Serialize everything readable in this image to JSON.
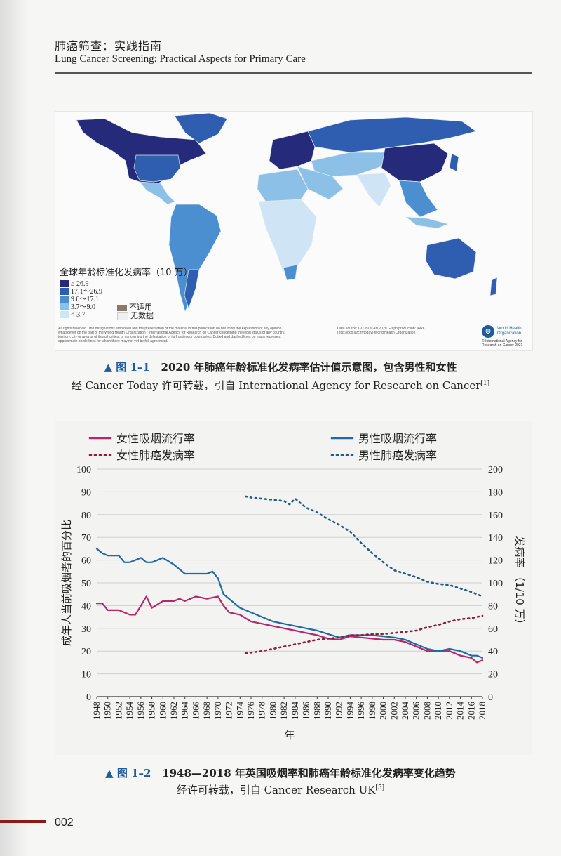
{
  "header": {
    "title_cn": "肺癌筛查：实践指南",
    "title_en": "Lung Cancer Screening: Practical Aspects for Primary Care"
  },
  "figure1": {
    "legend_title": "全球年龄标准化发病率（10 万）",
    "legend": [
      {
        "label": "≥ 26.9",
        "color": "#252a7a"
      },
      {
        "label": "17.1～26.9",
        "color": "#2f5db0"
      },
      {
        "label": "9.0～17.1",
        "color": "#4b8fd0"
      },
      {
        "label": "3.7～9.0",
        "color": "#8cc0e6"
      },
      {
        "label": "< 3.7",
        "color": "#cfe4f4"
      }
    ],
    "na_legend": [
      {
        "label": "不适用",
        "color": "#8a7a6a"
      },
      {
        "label": "无数据",
        "color": "#efefef"
      }
    ],
    "disclaimer": "All rights reserved. The designations employed and the presentation of the material in this publication do not imply the expression of any opinion whatsoever on the part of the World Health Organization / International Agency for Research on Cancer concerning the legal status of any country, territory, city or area or of its authorities, or concerning the delimitation of its frontiers or boundaries. Dotted and dashed lines on maps represent approximate borderlines for which there may not yet be full agreement.",
    "data_source": "Data source: GLOBOCAN 2020 Graph production: IARC (http://gco.iarc.fr/today) World Health Organization",
    "who_name": "World Health Organization",
    "who_copy": "© International Agency for Research on Cancer 2021",
    "caption_fig": "▲ 图 1–1",
    "caption_title": "2020 年肺癌年龄标准化发病率估计值示意图，包含男性和女性",
    "caption_source": "经 Cancer Today 许可转载，引自 International Agency for Research on Cancer",
    "caption_ref": "[1]"
  },
  "figure2": {
    "caption_fig": "▲ 图 1–2",
    "caption_title": "1948—2018 年英国吸烟率和肺癌年龄标准化发病率变化趋势",
    "caption_source": "经许可转载，引自 Cancer Research UK",
    "caption_ref": "[5]"
  },
  "chart_data": {
    "type": "line",
    "xlabel": "年",
    "ylabel_left": "成年人当前吸烟者的百分比",
    "ylabel_right": "发病率 （1/10 万）",
    "ylim_left": [
      0,
      100
    ],
    "ylim_right": [
      0,
      200
    ],
    "yticks_left": [
      0,
      10,
      20,
      30,
      40,
      50,
      60,
      70,
      80,
      90,
      100
    ],
    "yticks_right": [
      0,
      20,
      40,
      60,
      80,
      100,
      120,
      140,
      160,
      180,
      200
    ],
    "xlim": [
      1948,
      2018
    ],
    "xticks": [
      1948,
      1950,
      1952,
      1954,
      1956,
      1958,
      1960,
      1962,
      1964,
      1966,
      1968,
      1970,
      1972,
      1974,
      1976,
      1978,
      1980,
      1982,
      1984,
      1986,
      1988,
      1990,
      1992,
      1994,
      1996,
      1998,
      2000,
      2002,
      2004,
      2006,
      2008,
      2010,
      2012,
      2014,
      2016,
      2018
    ],
    "grid": true,
    "legend_position": "top",
    "series": [
      {
        "name": "女性吸烟流行率",
        "axis": "left",
        "style": "solid",
        "color": "#b5266a",
        "x": [
          1948,
          1949,
          1950,
          1952,
          1954,
          1955,
          1956,
          1957,
          1958,
          1960,
          1962,
          1963,
          1964,
          1966,
          1968,
          1970,
          1971,
          1972,
          1974,
          1976,
          1978,
          1980,
          1982,
          1984,
          1986,
          1988,
          1990,
          1992,
          1994,
          1996,
          1998,
          2000,
          2002,
          2004,
          2006,
          2008,
          2010,
          2012,
          2014,
          2016,
          2017,
          2018
        ],
        "y": [
          41,
          41,
          38,
          38,
          36,
          36,
          40,
          44,
          39,
          42,
          42,
          43,
          42,
          44,
          43,
          44,
          40,
          37,
          36,
          33,
          32,
          31,
          30,
          29,
          28,
          27,
          25.5,
          25,
          26.5,
          26,
          25.5,
          25,
          25,
          24,
          22,
          20,
          20,
          20,
          18,
          17,
          15,
          16
        ]
      },
      {
        "name": "男性吸烟流行率",
        "axis": "left",
        "style": "solid",
        "color": "#1f6aa5",
        "x": [
          1948,
          1949,
          1950,
          1952,
          1953,
          1954,
          1956,
          1957,
          1958,
          1960,
          1962,
          1964,
          1966,
          1968,
          1969,
          1970,
          1971,
          1972,
          1974,
          1976,
          1978,
          1980,
          1982,
          1984,
          1986,
          1988,
          1990,
          1992,
          1994,
          1996,
          1998,
          2000,
          2002,
          2004,
          2006,
          2008,
          2010,
          2012,
          2014,
          2016,
          2017,
          2018
        ],
        "y": [
          65,
          63,
          62,
          62,
          59,
          59,
          61,
          59,
          59,
          61,
          58,
          54,
          54,
          54,
          55,
          52,
          45,
          43,
          39,
          37,
          35,
          33,
          32,
          31,
          30,
          29,
          27.5,
          26,
          27,
          27,
          27,
          26.5,
          26,
          25,
          23,
          21,
          20,
          21,
          20,
          18,
          18,
          17
        ]
      },
      {
        "name": "女性肺癌发病率",
        "axis": "right",
        "style": "dotted",
        "color": "#8a1f3a",
        "x": [
          1975,
          1978,
          1980,
          1982,
          1984,
          1986,
          1988,
          1990,
          1992,
          1994,
          1996,
          1998,
          2000,
          2002,
          2004,
          2006,
          2008,
          2010,
          2012,
          2014,
          2016,
          2018
        ],
        "y": [
          38,
          40,
          42,
          44,
          46,
          48,
          50,
          51,
          52,
          54,
          54,
          55,
          55,
          56,
          57,
          58,
          61,
          63,
          66,
          68,
          69,
          71
        ]
      },
      {
        "name": "男性肺癌发病率",
        "axis": "right",
        "style": "dotted",
        "color": "#1f5c8e",
        "x": [
          1975,
          1976,
          1978,
          1980,
          1982,
          1983,
          1984,
          1986,
          1988,
          1990,
          1992,
          1994,
          1996,
          1998,
          2000,
          2002,
          2004,
          2006,
          2008,
          2010,
          2012,
          2014,
          2016,
          2018
        ],
        "y": [
          176,
          175,
          174,
          173,
          172,
          169,
          174,
          166,
          162,
          156,
          151,
          145,
          135,
          126,
          118,
          111,
          108,
          105,
          101,
          99,
          98,
          95,
          92,
          88
        ]
      }
    ]
  },
  "footer": {
    "page_number": "002"
  }
}
